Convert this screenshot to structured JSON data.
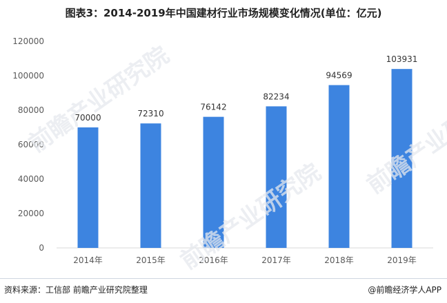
{
  "title": "图表3：2014-2019年中国建材行业市场规模变化情况(单位：亿元)",
  "watermark_text": "前瞻产业研究院",
  "footer": {
    "source": "资料来源：工信部 前瞻产业研究院整理",
    "brand": "@前瞻经济学人APP"
  },
  "colors": {
    "bar": "#3d84e0",
    "axis": "#d9d9d9",
    "text": "#595959"
  },
  "chart_data": {
    "type": "bar",
    "categories": [
      "2014年",
      "2015年",
      "2016年",
      "2017年",
      "2018年",
      "2019年"
    ],
    "values": [
      70000,
      72310,
      76142,
      82234,
      94569,
      103931
    ],
    "value_labels": [
      "70000",
      "72310",
      "76142",
      "82234",
      "94569",
      "103931"
    ],
    "ylim": [
      0,
      120000
    ],
    "yticks": [
      0,
      20000,
      40000,
      60000,
      80000,
      100000,
      120000
    ],
    "ytick_labels": [
      "0",
      "20000",
      "40000",
      "60000",
      "80000",
      "100000",
      "120000"
    ],
    "xlabel": "",
    "ylabel": "",
    "grid": false,
    "legend": "none"
  }
}
